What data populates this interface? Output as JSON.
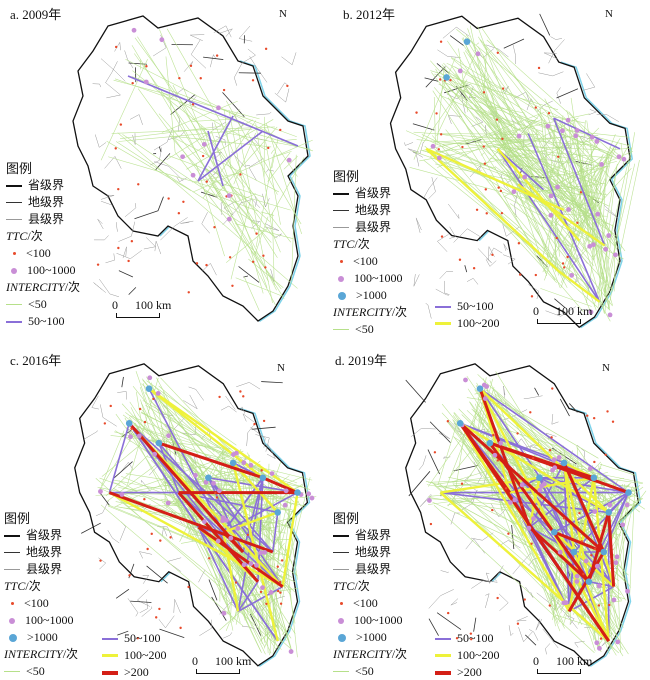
{
  "panels": [
    {
      "id": "a",
      "title": "a. 2009年",
      "level": 0
    },
    {
      "id": "b",
      "title": "b. 2012年",
      "level": 1
    },
    {
      "id": "c",
      "title": "c. 2016年",
      "level": 2
    },
    {
      "id": "d",
      "title": "d. 2019年",
      "level": 3
    }
  ],
  "legend": {
    "title": "图例",
    "boundary_province": "省级界",
    "boundary_prefecture": "地级界",
    "boundary_county": "县级界",
    "ttc_label": "TTC",
    "ttc_unit": "/次",
    "ttc_lt100": "<100",
    "ttc_100_1000": "100~1000",
    "ttc_gt1000": ">1000",
    "intercity_label": "INTERCITY",
    "intercity_unit": "/次",
    "ic_lt50": "<50",
    "ic_50_100": "50~100",
    "ic_100_200": "100~200",
    "ic_gt200": ">200"
  },
  "scale": {
    "zero": "0",
    "value": "100 km"
  },
  "north_label": "N",
  "colors": {
    "ttc_small": "#e84a2b",
    "ttc_mid": "#c98ed6",
    "ttc_big": "#5aa6d6",
    "ic_lt50": "#b6e08a",
    "ic_50_100": "#8a6fd8",
    "ic_100_200": "#eef23a",
    "ic_gt200": "#d41f16",
    "coast": "#7fd3ea"
  }
}
